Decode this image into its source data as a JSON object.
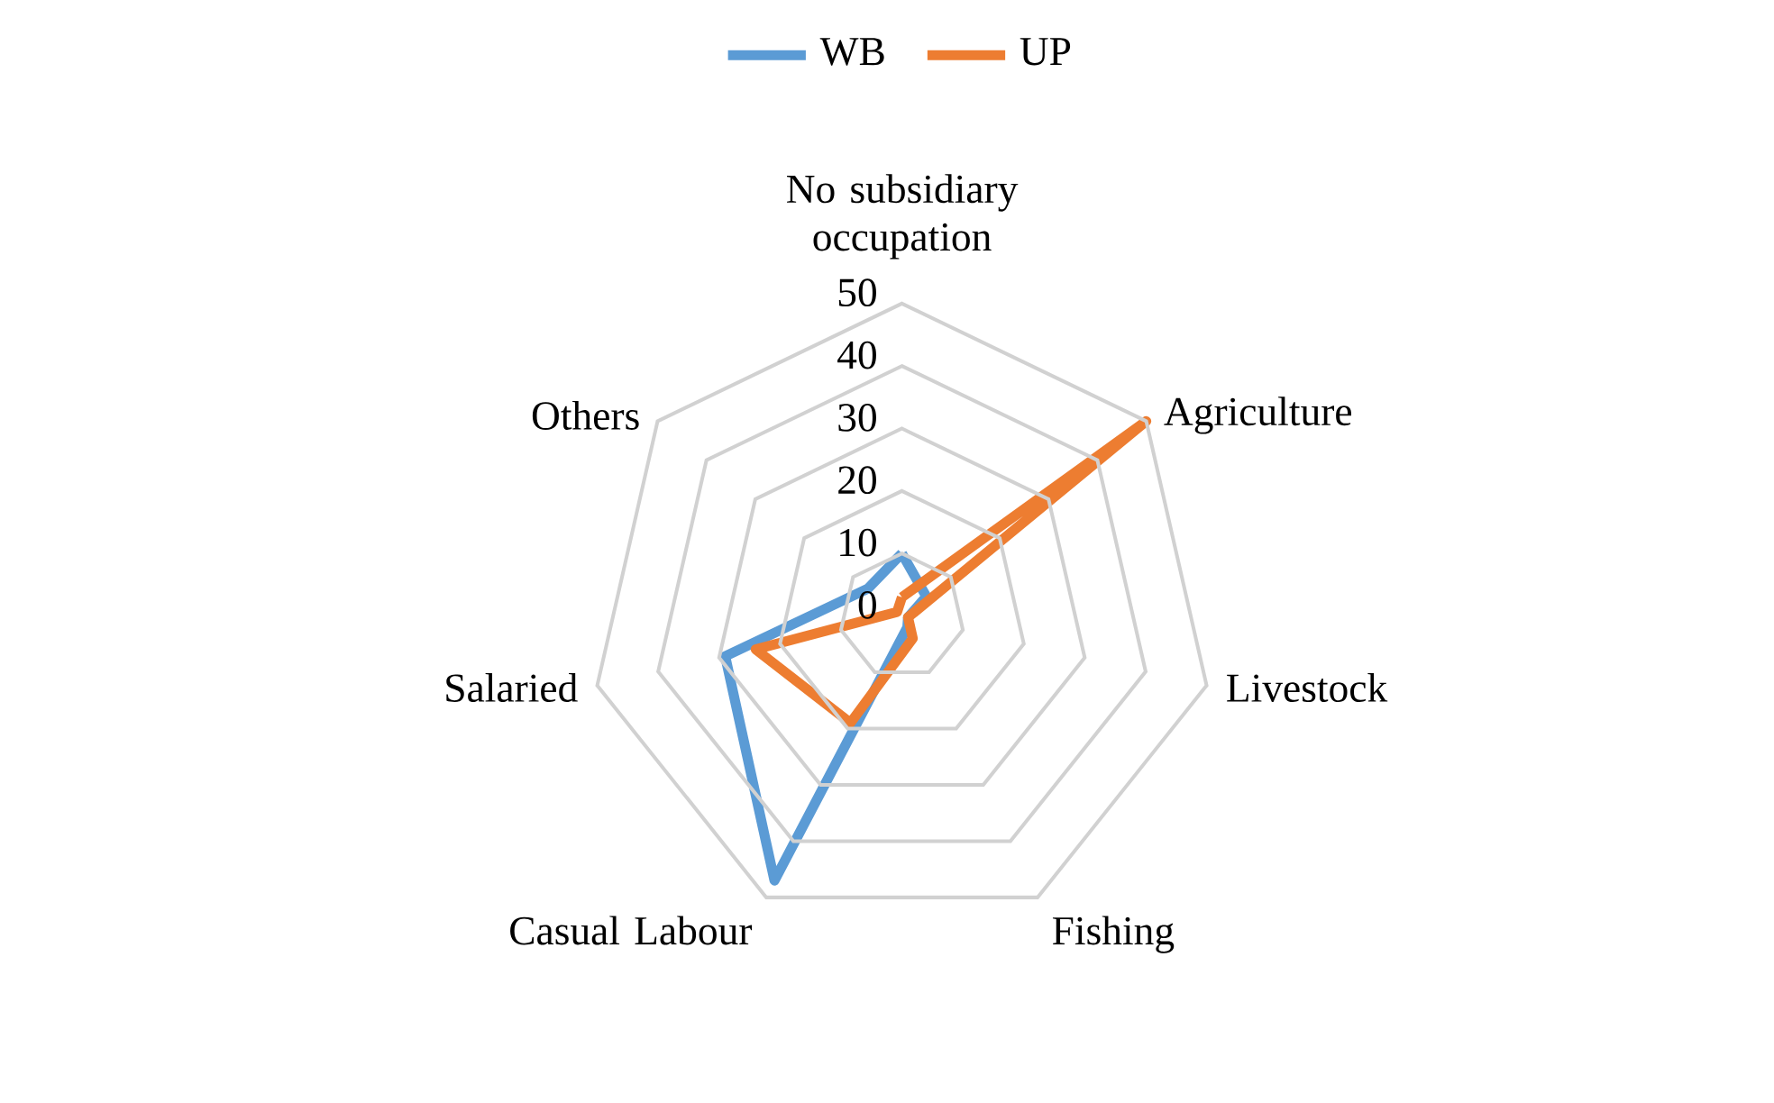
{
  "chart_data": {
    "type": "radar",
    "categories": [
      "No subsidiary occupation",
      "Agriculture",
      "Livestock",
      "Fishing",
      "Casual Labour",
      "Salaried",
      "Others"
    ],
    "series": [
      {
        "name": "WB",
        "color": "#5b9bd5",
        "values": [
          10,
          5,
          1,
          2,
          47,
          29,
          7
        ]
      },
      {
        "name": "UP",
        "color": "#ed7d31",
        "values": [
          3,
          50,
          1,
          4,
          19,
          24,
          1
        ]
      }
    ],
    "ylim": [
      0,
      50
    ],
    "yticks": [
      0,
      10,
      20,
      30,
      40,
      50
    ],
    "grid": true,
    "legend": "top"
  }
}
